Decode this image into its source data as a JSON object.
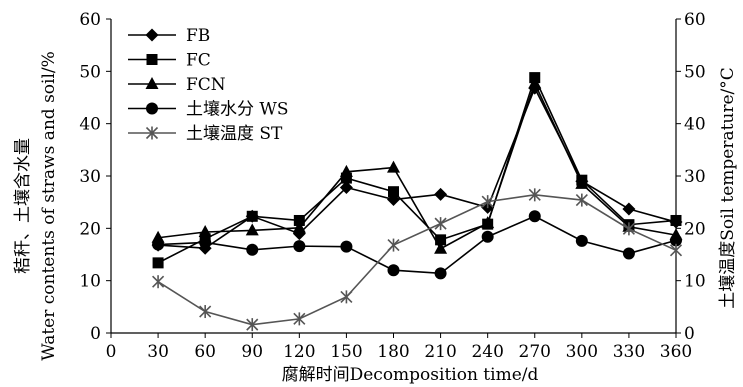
{
  "chart_data": {
    "type": "line",
    "x": [
      30,
      60,
      90,
      120,
      150,
      180,
      210,
      240,
      270,
      300,
      330,
      360
    ],
    "xlim": [
      0,
      360
    ],
    "xticks": [
      "0",
      "30",
      "60",
      "90",
      "120",
      "150",
      "180",
      "210",
      "240",
      "270",
      "300",
      "330",
      "360"
    ],
    "ylim": [
      0,
      60
    ],
    "yticks": [
      "0",
      "10",
      "20",
      "30",
      "40",
      "50",
      "60"
    ],
    "y2lim": [
      0,
      60
    ],
    "y2ticks": [
      "0",
      "10",
      "20",
      "30",
      "40",
      "50",
      "60"
    ],
    "xlabel": "腐解时间Decomposition time/d",
    "ylabel_line1": "秸秆、土壤含水量",
    "ylabel_line2": "Water contents of straws and soil/%",
    "y2label": "土壤温度Soil temperature/°C",
    "legend_position": "top-left",
    "series": [
      {
        "name": "FB",
        "marker": "diamond",
        "axis": "left",
        "color": "#000000",
        "values": [
          16.8,
          16.2,
          22.3,
          19.0,
          27.8,
          25.5,
          26.5,
          24.0,
          46.8,
          29.0,
          23.7,
          21.2
        ]
      },
      {
        "name": "FC",
        "marker": "square",
        "axis": "left",
        "color": "#000000",
        "values": [
          13.4,
          18.0,
          22.3,
          21.5,
          29.6,
          27.0,
          17.8,
          20.8,
          48.8,
          29.2,
          20.7,
          21.5
        ]
      },
      {
        "name": "FCN",
        "marker": "triangle",
        "axis": "left",
        "color": "#000000",
        "values": [
          18.2,
          19.3,
          19.6,
          20.1,
          30.8,
          31.6,
          16.1,
          21.0,
          47.7,
          28.5,
          20.3,
          18.7
        ]
      },
      {
        "name": "土壤水分 WS",
        "marker": "circle",
        "axis": "left",
        "color": "#000000",
        "values": [
          16.9,
          17.3,
          15.9,
          16.6,
          16.5,
          12.0,
          11.4,
          18.4,
          22.3,
          17.6,
          15.2,
          17.7
        ]
      },
      {
        "name": "土壤温度 ST",
        "marker": "asterisk",
        "axis": "right",
        "color": "#555555",
        "values": [
          9.8,
          4.1,
          1.6,
          2.7,
          6.9,
          16.8,
          20.9,
          25.1,
          26.4,
          25.4,
          19.9,
          15.8
        ]
      }
    ]
  }
}
